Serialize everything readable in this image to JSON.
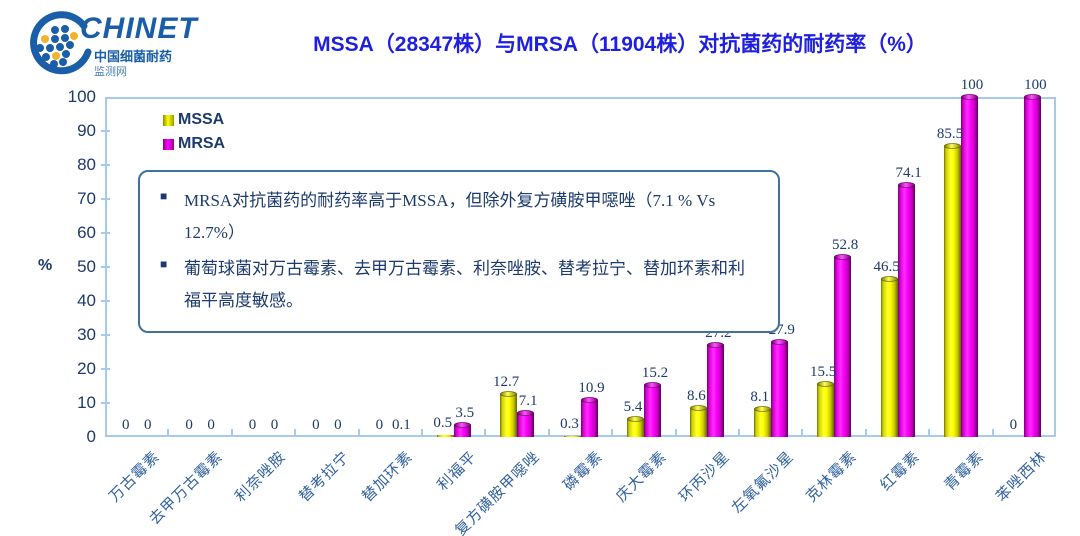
{
  "logo": {
    "name": "CHINET",
    "sub1": "中国细菌耐药",
    "sub2": "监测网"
  },
  "title": "MSSA（28347株）与MRSA（11904株）对抗菌药的耐药率（%）",
  "note": {
    "bullet_char": "■",
    "bullets": [
      "MRSA对抗菌药的耐药率高于MSSA，但除外复方磺胺甲噁唑（7.1 % Vs 12.7%）",
      "葡萄球菌对万古霉素、去甲万古霉素、利奈唑胺、替考拉宁、替加环素和利福平高度敏感。"
    ]
  },
  "colors": {
    "title_blue": "#1f1fe0",
    "navy_text": "#1c3a6e",
    "x_label_blue": "#31619f",
    "plot_border": "#a7c9ec",
    "note_border": "#41719c",
    "mssa": "#FFFF00",
    "mrsa": "#FF00FF",
    "logo_blue": "#1b5ea8",
    "logo_yellow": "#f0b32e"
  },
  "chart_data": {
    "type": "bar",
    "title": "MSSA（28347株）与MRSA（11904株）对抗菌药的耐药率（%）",
    "xlabel": "",
    "ylabel": "%",
    "ylim": [
      0,
      100
    ],
    "yticks": [
      0,
      10,
      20,
      30,
      40,
      50,
      60,
      70,
      80,
      90,
      100
    ],
    "grid": false,
    "legend_position": "top-left-inside",
    "categories": [
      "万古霉素",
      "去甲万古霉素",
      "利奈唑胺",
      "替考拉宁",
      "替加环素",
      "利福平",
      "复方磺胺甲噁唑",
      "磷霉素",
      "庆大霉素",
      "环丙沙星",
      "左氧氟沙星",
      "克林霉素",
      "红霉素",
      "青霉素",
      "苯唑西林"
    ],
    "series": [
      {
        "name": "MSSA",
        "color": "#FFFF00",
        "values": [
          0,
          0,
          0,
          0,
          0,
          0.5,
          12.7,
          0.3,
          5.4,
          8.6,
          8.1,
          15.5,
          46.5,
          85.5,
          0
        ]
      },
      {
        "name": "MRSA",
        "color": "#FF00FF",
        "values": [
          0,
          0,
          0,
          0,
          0.1,
          3.5,
          7.1,
          10.9,
          15.2,
          27.2,
          27.9,
          52.8,
          74.1,
          100,
          100
        ]
      }
    ]
  }
}
